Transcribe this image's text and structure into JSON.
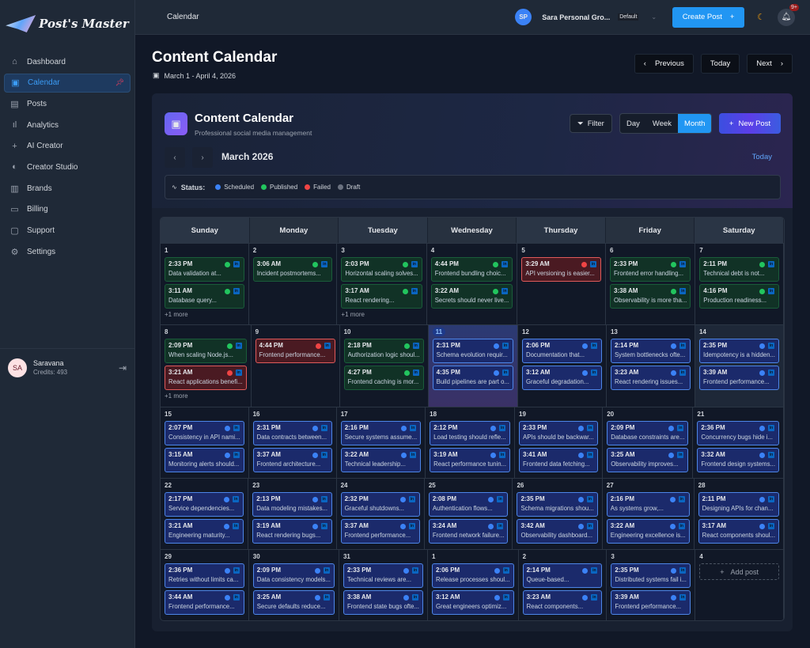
{
  "app": {
    "logo": "Post's Master"
  },
  "sidebar": {
    "items": [
      {
        "label": "Dashboard",
        "icon": "home-icon",
        "glyph": "⌂"
      },
      {
        "label": "Calendar",
        "icon": "calendar-icon",
        "glyph": "▣",
        "active": true
      },
      {
        "label": "Posts",
        "icon": "document-icon",
        "glyph": "▤"
      },
      {
        "label": "Analytics",
        "icon": "bar-chart-icon",
        "glyph": "ıl"
      },
      {
        "label": "AI Creator",
        "icon": "plus-icon",
        "glyph": "+"
      },
      {
        "label": "Creator Studio",
        "icon": "palette-icon",
        "glyph": "◐"
      },
      {
        "label": "Brands",
        "icon": "building-icon",
        "glyph": "▥"
      },
      {
        "label": "Billing",
        "icon": "credit-card-icon",
        "glyph": "▭"
      },
      {
        "label": "Support",
        "icon": "chat-icon",
        "glyph": "▢"
      },
      {
        "label": "Settings",
        "icon": "gear-icon",
        "glyph": "⚙"
      }
    ],
    "user": {
      "initials": "SA",
      "name": "Saravana",
      "credits": "Credits: 493"
    }
  },
  "topbar": {
    "breadcrumb": "Calendar",
    "org_initials": "SP",
    "org_name": "Sara Personal Gro...",
    "org_badge": "Default",
    "create_label": "Create Post",
    "notif_count": "9+"
  },
  "page": {
    "title": "Content Calendar",
    "range": "March 1 - April 4, 2026",
    "prev": "Previous",
    "today": "Today",
    "next": "Next"
  },
  "calendar": {
    "title": "Content Calendar",
    "subtitle": "Professional social media management",
    "filter": "Filter",
    "views": [
      "Day",
      "Week",
      "Month"
    ],
    "active_view": "Month",
    "new_post": "New Post",
    "month": "March 2026",
    "today": "Today",
    "legend_label": "Status:",
    "legend": [
      {
        "label": "Scheduled",
        "color": "#3b82f6"
      },
      {
        "label": "Published",
        "color": "#22c55e"
      },
      {
        "label": "Failed",
        "color": "#ef4444"
      },
      {
        "label": "Draft",
        "color": "#6b7280"
      }
    ],
    "weekdays": [
      "Sunday",
      "Monday",
      "Tuesday",
      "Wednesday",
      "Thursday",
      "Friday",
      "Saturday"
    ],
    "add_post": "Add post",
    "weeks": [
      [
        {
          "day": "1",
          "more": "+1 more",
          "posts": [
            {
              "time": "2:33 PM",
              "text": "Data validation at...",
              "status": "published"
            },
            {
              "time": "3:11 AM",
              "text": "Database query...",
              "status": "published"
            }
          ]
        },
        {
          "day": "2",
          "posts": [
            {
              "time": "3:06 AM",
              "text": "Incident postmortems...",
              "status": "published"
            }
          ]
        },
        {
          "day": "3",
          "more": "+1 more",
          "posts": [
            {
              "time": "2:03 PM",
              "text": "Horizontal scaling solves...",
              "status": "published"
            },
            {
              "time": "3:17 AM",
              "text": "React rendering...",
              "status": "published"
            }
          ]
        },
        {
          "day": "4",
          "posts": [
            {
              "time": "4:44 PM",
              "text": "Frontend bundling choic...",
              "status": "published"
            },
            {
              "time": "3:22 AM",
              "text": "Secrets should never live...",
              "status": "published"
            }
          ]
        },
        {
          "day": "5",
          "posts": [
            {
              "time": "3:29 AM",
              "text": "API versioning is easier...",
              "status": "failed"
            }
          ]
        },
        {
          "day": "6",
          "posts": [
            {
              "time": "2:33 PM",
              "text": "Frontend error handling...",
              "status": "published"
            },
            {
              "time": "3:38 AM",
              "text": "Observability is more tha...",
              "status": "published"
            }
          ]
        },
        {
          "day": "7",
          "posts": [
            {
              "time": "2:11 PM",
              "text": "Technical debt is not...",
              "status": "published"
            },
            {
              "time": "4:16 PM",
              "text": "Production readiness...",
              "status": "published"
            }
          ]
        }
      ],
      [
        {
          "day": "8",
          "more": "+1 more",
          "posts": [
            {
              "time": "2:09 PM",
              "text": "When scaling Node.js...",
              "status": "published"
            },
            {
              "time": "3:21 AM",
              "text": "React applications benefi...",
              "status": "failed"
            }
          ]
        },
        {
          "day": "9",
          "posts": [
            {
              "time": "4:44 PM",
              "text": "Frontend performance...",
              "status": "failed"
            }
          ]
        },
        {
          "day": "10",
          "posts": [
            {
              "time": "2:18 PM",
              "text": "Authorization logic shoul...",
              "status": "published"
            },
            {
              "time": "4:27 PM",
              "text": "Frontend caching is mor...",
              "status": "published"
            }
          ]
        },
        {
          "day": "11",
          "today": true,
          "posts": [
            {
              "time": "2:31 PM",
              "text": "Schema evolution requir...",
              "status": "scheduled"
            },
            {
              "time": "4:35 PM",
              "text": "Build pipelines are part o...",
              "status": "scheduled"
            }
          ]
        },
        {
          "day": "12",
          "posts": [
            {
              "time": "2:06 PM",
              "text": "Documentation that...",
              "status": "scheduled"
            },
            {
              "time": "3:12 AM",
              "text": "Graceful degradation...",
              "status": "scheduled"
            }
          ]
        },
        {
          "day": "13",
          "posts": [
            {
              "time": "2:14 PM",
              "text": "System bottlenecks ofte...",
              "status": "scheduled"
            },
            {
              "time": "3:23 AM",
              "text": "React rendering issues...",
              "status": "scheduled"
            }
          ]
        },
        {
          "day": "14",
          "posts": [
            {
              "time": "2:35 PM",
              "text": "Idempotency is a hidden...",
              "status": "scheduled"
            },
            {
              "time": "3:39 AM",
              "text": "Frontend performance...",
              "status": "scheduled"
            }
          ]
        }
      ],
      [
        {
          "day": "15",
          "posts": [
            {
              "time": "2:07 PM",
              "text": "Consistency in API nami...",
              "status": "scheduled"
            },
            {
              "time": "3:15 AM",
              "text": "Monitoring alerts should...",
              "status": "scheduled"
            }
          ]
        },
        {
          "day": "16",
          "posts": [
            {
              "time": "2:31 PM",
              "text": "Data contracts between...",
              "status": "scheduled"
            },
            {
              "time": "3:37 AM",
              "text": "Frontend architecture...",
              "status": "scheduled"
            }
          ]
        },
        {
          "day": "17",
          "posts": [
            {
              "time": "2:16 PM",
              "text": "Secure systems assume...",
              "status": "scheduled"
            },
            {
              "time": "3:22 AM",
              "text": "Technical leadership...",
              "status": "scheduled"
            }
          ]
        },
        {
          "day": "18",
          "posts": [
            {
              "time": "2:12 PM",
              "text": "Load testing should refle...",
              "status": "scheduled"
            },
            {
              "time": "3:19 AM",
              "text": "React performance tunin...",
              "status": "scheduled"
            }
          ]
        },
        {
          "day": "19",
          "posts": [
            {
              "time": "2:33 PM",
              "text": "APIs should be backwar...",
              "status": "scheduled"
            },
            {
              "time": "3:41 AM",
              "text": "Frontend data fetching...",
              "status": "scheduled"
            }
          ]
        },
        {
          "day": "20",
          "posts": [
            {
              "time": "2:09 PM",
              "text": "Database constraints are...",
              "status": "scheduled"
            },
            {
              "time": "3:25 AM",
              "text": "Observability improves...",
              "status": "scheduled"
            }
          ]
        },
        {
          "day": "21",
          "posts": [
            {
              "time": "2:36 PM",
              "text": "Concurrency bugs hide i...",
              "status": "scheduled"
            },
            {
              "time": "3:32 AM",
              "text": "Frontend design systems...",
              "status": "scheduled"
            }
          ]
        }
      ],
      [
        {
          "day": "22",
          "posts": [
            {
              "time": "2:17 PM",
              "text": "Service dependencies...",
              "status": "scheduled"
            },
            {
              "time": "3:21 AM",
              "text": "Engineering maturity...",
              "status": "scheduled"
            }
          ]
        },
        {
          "day": "23",
          "posts": [
            {
              "time": "2:13 PM",
              "text": "Data modeling mistakes...",
              "status": "scheduled"
            },
            {
              "time": "3:19 AM",
              "text": "React rendering bugs...",
              "status": "scheduled"
            }
          ]
        },
        {
          "day": "24",
          "posts": [
            {
              "time": "2:32 PM",
              "text": "Graceful shutdowns...",
              "status": "scheduled"
            },
            {
              "time": "3:37 AM",
              "text": "Frontend performance...",
              "status": "scheduled"
            }
          ]
        },
        {
          "day": "25",
          "posts": [
            {
              "time": "2:08 PM",
              "text": "Authentication flows...",
              "status": "scheduled"
            },
            {
              "time": "3:24 AM",
              "text": "Frontend network failure...",
              "status": "scheduled"
            }
          ]
        },
        {
          "day": "26",
          "posts": [
            {
              "time": "2:35 PM",
              "text": "Schema migrations shou...",
              "status": "scheduled"
            },
            {
              "time": "3:42 AM",
              "text": "Observability dashboard...",
              "status": "scheduled"
            }
          ]
        },
        {
          "day": "27",
          "posts": [
            {
              "time": "2:16 PM",
              "text": "As systems grow,...",
              "status": "scheduled"
            },
            {
              "time": "3:22 AM",
              "text": "Engineering excellence is...",
              "status": "scheduled"
            }
          ]
        },
        {
          "day": "28",
          "posts": [
            {
              "time": "2:11 PM",
              "text": "Designing APIs for chan...",
              "status": "scheduled"
            },
            {
              "time": "3:17 AM",
              "text": "React components shoul...",
              "status": "scheduled"
            }
          ]
        }
      ],
      [
        {
          "day": "29",
          "posts": [
            {
              "time": "2:36 PM",
              "text": "Retries without limits ca...",
              "status": "scheduled"
            },
            {
              "time": "3:44 AM",
              "text": "Frontend performance...",
              "status": "scheduled"
            }
          ]
        },
        {
          "day": "30",
          "posts": [
            {
              "time": "2:09 PM",
              "text": "Data consistency models...",
              "status": "scheduled"
            },
            {
              "time": "3:25 AM",
              "text": "Secure defaults reduce...",
              "status": "scheduled"
            }
          ]
        },
        {
          "day": "31",
          "posts": [
            {
              "time": "2:33 PM",
              "text": "Technical reviews are...",
              "status": "scheduled"
            },
            {
              "time": "3:38 AM",
              "text": "Frontend state bugs ofte...",
              "status": "scheduled"
            }
          ]
        },
        {
          "day": "1",
          "posts": [
            {
              "time": "2:06 PM",
              "text": "Release processes shoul...",
              "status": "scheduled"
            },
            {
              "time": "3:12 AM",
              "text": "Great engineers optimiz...",
              "status": "scheduled"
            }
          ]
        },
        {
          "day": "2",
          "posts": [
            {
              "time": "2:14 PM",
              "text": "Queue-based...",
              "status": "scheduled"
            },
            {
              "time": "3:23 AM",
              "text": "React components...",
              "status": "scheduled"
            }
          ]
        },
        {
          "day": "3",
          "posts": [
            {
              "time": "2:35 PM",
              "text": "Distributed systems fail i...",
              "status": "scheduled"
            },
            {
              "time": "3:39 AM",
              "text": "Frontend performance...",
              "status": "scheduled"
            }
          ]
        },
        {
          "day": "4",
          "add": true,
          "posts": []
        }
      ]
    ]
  }
}
